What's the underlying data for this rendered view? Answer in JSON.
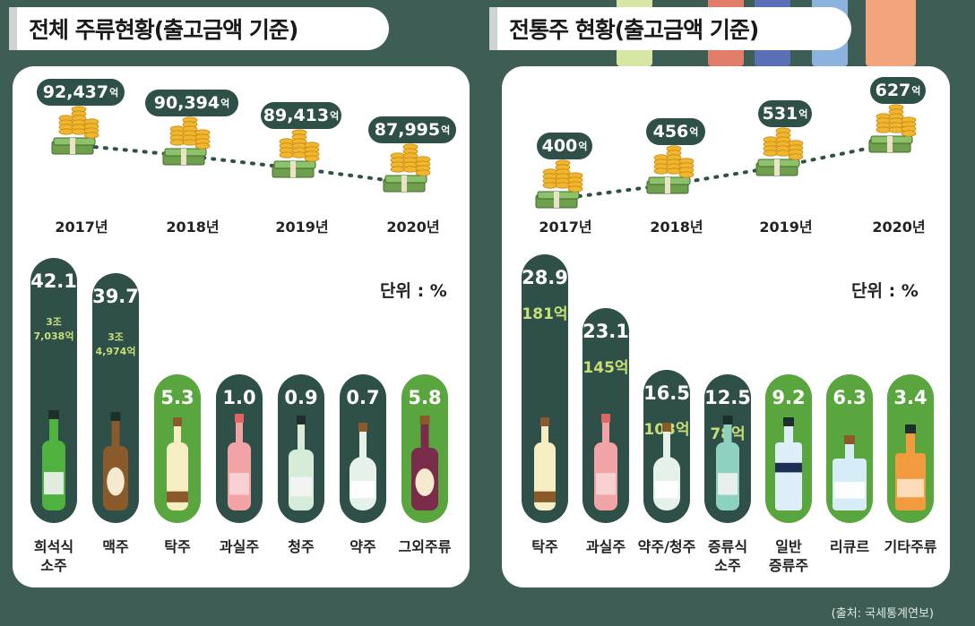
{
  "left": {
    "title": "전체 주류현황(출고금액 기준)",
    "trend": [
      {
        "year": "2017년",
        "amount": "92,437",
        "unit": "억"
      },
      {
        "year": "2018년",
        "amount": "90,394",
        "unit": "억"
      },
      {
        "year": "2019년",
        "amount": "89,413",
        "unit": "억"
      },
      {
        "year": "2020년",
        "amount": "87,995",
        "unit": "억"
      }
    ],
    "unit_label": "단위 : %"
  },
  "right": {
    "title": "전통주 현황(출고금액 기준)",
    "trend": [
      {
        "year": "2017년",
        "amount": "400",
        "unit": "억"
      },
      {
        "year": "2018년",
        "amount": "456",
        "unit": "억"
      },
      {
        "year": "2019년",
        "amount": "531",
        "unit": "억"
      },
      {
        "year": "2020년",
        "amount": "627",
        "unit": "억"
      }
    ],
    "unit_label": "단위 : %"
  },
  "source": "(출처: 국세통계연보)",
  "colors": {
    "background": "#3e5e55",
    "dark_bar": "#2f4f49",
    "green_bar": "#5aa63e",
    "sub_text": "#c7df77"
  },
  "chart_data": [
    {
      "type": "line",
      "title": "전체 주류현황(출고금액 기준)",
      "x": [
        "2017년",
        "2018년",
        "2019년",
        "2020년"
      ],
      "values": [
        92437,
        90394,
        89413,
        87995
      ],
      "value_labels": [
        "92,437억",
        "90,394억",
        "89,413억",
        "87,995억"
      ]
    },
    {
      "type": "bar",
      "unit": "단위 : %",
      "categories": [
        [
          "희석식",
          "소주"
        ],
        [
          "맥주"
        ],
        [
          "탁주"
        ],
        [
          "과실주"
        ],
        [
          "청주"
        ],
        [
          "약주"
        ],
        [
          "그외주류"
        ]
      ],
      "values": [
        42.1,
        39.7,
        5.3,
        1.0,
        0.9,
        0.7,
        5.8
      ],
      "value_labels": [
        "42.1",
        "39.7",
        "5.3",
        "1.0",
        "0.9",
        "0.7",
        "5.8"
      ],
      "sub_labels": [
        [
          "3조",
          "7,038억"
        ],
        [
          "3조",
          "4,974억"
        ],
        [],
        [],
        [],
        [],
        []
      ],
      "styles": [
        "dark",
        "dark",
        "green",
        "dark",
        "dark",
        "dark",
        "green"
      ],
      "bottles": [
        "green-bottle",
        "beer-bottle",
        "makgeolli-bottle",
        "fruit-wine-bottle",
        "cheongju-bottle",
        "yakju-bottle",
        "wine-bottle"
      ]
    },
    {
      "type": "line",
      "title": "전통주 현황(출고금액 기준)",
      "x": [
        "2017년",
        "2018년",
        "2019년",
        "2020년"
      ],
      "values": [
        400,
        456,
        531,
        627
      ],
      "value_labels": [
        "400억",
        "456억",
        "531억",
        "627억"
      ]
    },
    {
      "type": "bar",
      "unit": "단위 : %",
      "categories": [
        [
          "탁주"
        ],
        [
          "과실주"
        ],
        [
          "약주/청주"
        ],
        [
          "증류식",
          "소주"
        ],
        [
          "일반",
          "증류주"
        ],
        [
          "리큐르"
        ],
        [
          "기타주류"
        ]
      ],
      "values": [
        28.9,
        23.1,
        16.5,
        12.5,
        9.2,
        6.3,
        3.4
      ],
      "value_labels": [
        "28.9",
        "23.1",
        "16.5",
        "12.5",
        "9.2",
        "6.3",
        "3.4"
      ],
      "sub_labels": [
        [
          "181억"
        ],
        [
          "145억"
        ],
        [
          "103억"
        ],
        [
          "78억"
        ],
        [],
        [],
        []
      ],
      "styles": [
        "dark",
        "dark",
        "dark",
        "dark",
        "green",
        "green",
        "green"
      ],
      "bottles": [
        "makgeolli-bottle",
        "fruit-wine-bottle",
        "yakju-bottle",
        "soju-bottle",
        "spirit-bottle",
        "liqueur-bottle",
        "whisky-bottle"
      ]
    }
  ]
}
